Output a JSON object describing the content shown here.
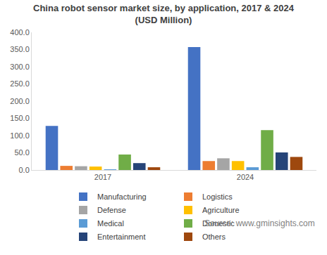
{
  "chart_data": {
    "type": "bar",
    "title": "China robot sensor market size, by application, 2017 & 2024",
    "subtitle": "(USD Million)",
    "annotations": [
      "Source: www.gminsights.com"
    ],
    "categories": [
      "2017",
      "2024"
    ],
    "series": [
      {
        "name": "Manufacturing",
        "color": "#4472C4",
        "values": [
          128,
          357
        ]
      },
      {
        "name": "Logistics",
        "color": "#ED7D31",
        "values": [
          12,
          26
        ]
      },
      {
        "name": "Defense",
        "color": "#A5A5A5",
        "values": [
          11,
          34
        ]
      },
      {
        "name": "Agriculture",
        "color": "#FFC000",
        "values": [
          10,
          26
        ]
      },
      {
        "name": "Medical",
        "color": "#5B9BD5",
        "values": [
          2,
          8
        ]
      },
      {
        "name": "Domestic",
        "color": "#70AD47",
        "values": [
          45,
          116
        ]
      },
      {
        "name": "Entertainment",
        "color": "#264478",
        "values": [
          20,
          51
        ]
      },
      {
        "name": "Others",
        "color": "#9E480E",
        "values": [
          8,
          38
        ]
      }
    ],
    "ylim": [
      0,
      400
    ],
    "yticks": [
      {
        "value": 0,
        "label": "0.0"
      },
      {
        "value": 50,
        "label": "50.0"
      },
      {
        "value": 100,
        "label": "100.0"
      },
      {
        "value": 150,
        "label": "150.0"
      },
      {
        "value": 200,
        "label": "200.0"
      },
      {
        "value": 250,
        "label": "250.0"
      },
      {
        "value": 300,
        "label": "300.0"
      },
      {
        "value": 350,
        "label": "350.0"
      },
      {
        "value": 400,
        "label": "400.0"
      }
    ],
    "grid": false,
    "legend": "bottom"
  }
}
